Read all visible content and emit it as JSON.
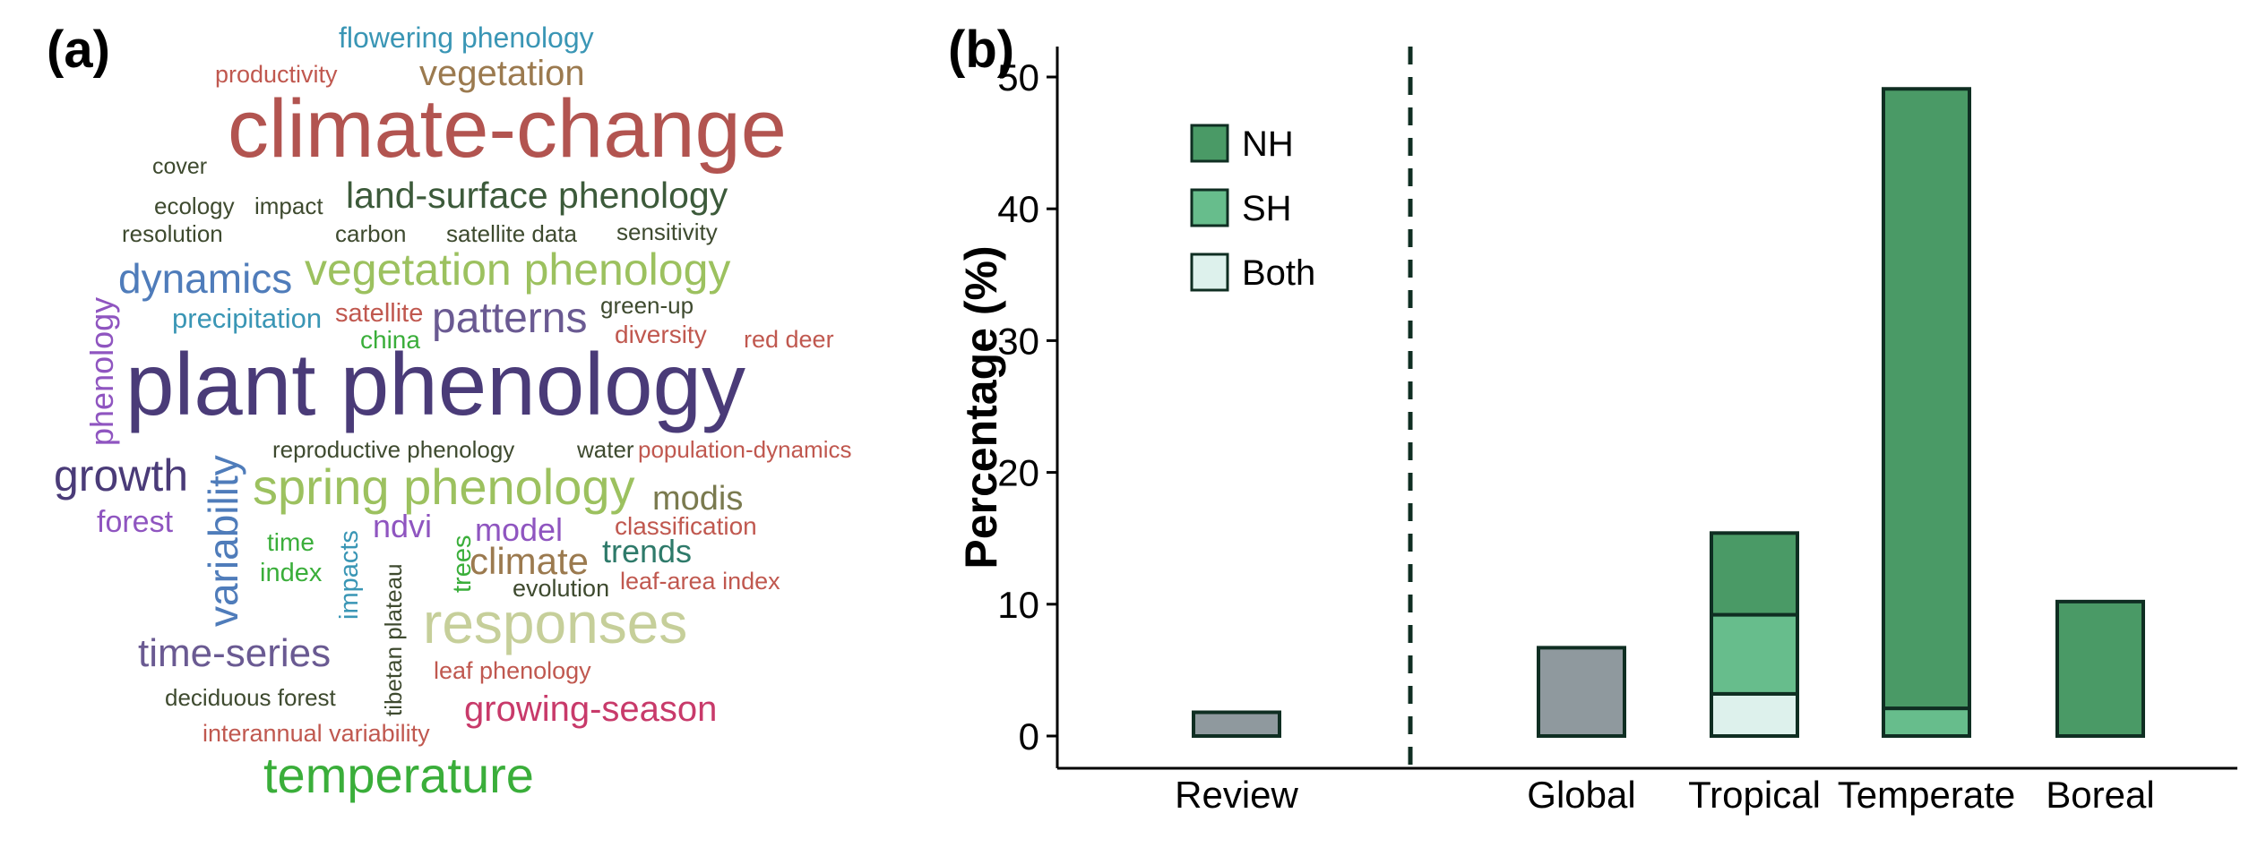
{
  "panels": {
    "a": "(a)",
    "b": "(b)"
  },
  "wordcloud": {
    "words": [
      {
        "text": "flowering phenology",
        "color": "#3a96b5"
      },
      {
        "text": "productivity",
        "color": "#c0584f"
      },
      {
        "text": "vegetation",
        "color": "#9b7a4f"
      },
      {
        "text": "climate-change",
        "color": "#b25450"
      },
      {
        "text": "cover",
        "color": "#3e4a2f"
      },
      {
        "text": "ecology",
        "color": "#3e4a2f"
      },
      {
        "text": "impact",
        "color": "#3e4a2f"
      },
      {
        "text": "land-surface phenology",
        "color": "#3c5a3a"
      },
      {
        "text": "resolution",
        "color": "#3e4a2f"
      },
      {
        "text": "carbon",
        "color": "#3e4a2f"
      },
      {
        "text": "satellite data",
        "color": "#3e4a2f"
      },
      {
        "text": "sensitivity",
        "color": "#3e4a2f"
      },
      {
        "text": "dynamics",
        "color": "#4f7cba"
      },
      {
        "text": "vegetation phenology",
        "color": "#9cc15f"
      },
      {
        "text": "phenology",
        "color": "#8f55c0"
      },
      {
        "text": "precipitation",
        "color": "#3a96b5"
      },
      {
        "text": "satellite",
        "color": "#c0584f"
      },
      {
        "text": "china",
        "color": "#3aae3a"
      },
      {
        "text": "patterns",
        "color": "#6a5a92"
      },
      {
        "text": "green-up",
        "color": "#3e4a2f"
      },
      {
        "text": "diversity",
        "color": "#c0584f"
      },
      {
        "text": "red deer",
        "color": "#c0584f"
      },
      {
        "text": "plant phenology",
        "color": "#4a3b78"
      },
      {
        "text": "reproductive phenology",
        "color": "#3e4a2f"
      },
      {
        "text": "water",
        "color": "#3e4a2f"
      },
      {
        "text": "population-dynamics",
        "color": "#c0584f"
      },
      {
        "text": "growth",
        "color": "#4a3b78"
      },
      {
        "text": "variability",
        "color": "#4f7cba"
      },
      {
        "text": "spring phenology",
        "color": "#9cc15f"
      },
      {
        "text": "modis",
        "color": "#7a7a4f"
      },
      {
        "text": "forest",
        "color": "#8f55c0"
      },
      {
        "text": "time",
        "color": "#3aae3a"
      },
      {
        "text": "impacts",
        "color": "#3a96b5"
      },
      {
        "text": "ndvi",
        "color": "#8f55c0"
      },
      {
        "text": "model",
        "color": "#8f55c0"
      },
      {
        "text": "classification",
        "color": "#c0584f"
      },
      {
        "text": "index",
        "color": "#3aae3a"
      },
      {
        "text": "trees",
        "color": "#3aae3a"
      },
      {
        "text": "climate",
        "color": "#9b7a4f"
      },
      {
        "text": "trends",
        "color": "#2e7a6a"
      },
      {
        "text": "tibetan plateau",
        "color": "#3e4a2f"
      },
      {
        "text": "evolution",
        "color": "#3e4a2f"
      },
      {
        "text": "leaf-area index",
        "color": "#c0584f"
      },
      {
        "text": "responses",
        "color": "#c6cf9a"
      },
      {
        "text": "time-series",
        "color": "#6a5a92"
      },
      {
        "text": "leaf phenology",
        "color": "#c0584f"
      },
      {
        "text": "deciduous forest",
        "color": "#3e4a2f"
      },
      {
        "text": "growing-season",
        "color": "#c83a6a"
      },
      {
        "text": "interannual variability",
        "color": "#c0584f"
      },
      {
        "text": "temperature",
        "color": "#3aae3a"
      }
    ]
  },
  "chart_data": {
    "type": "bar",
    "stacked": true,
    "ylabel": "Percentage (%)",
    "xlabel": "",
    "ylim": [
      0,
      51.5
    ],
    "yticks": [
      "0",
      "10",
      "20",
      "30",
      "40",
      "50"
    ],
    "categories": [
      "Review",
      "Global",
      "Tropical",
      "Temperate",
      "Boreal"
    ],
    "separator_after": "Review",
    "legend": {
      "position": "top-left",
      "entries": [
        "NH",
        "SH",
        "Both"
      ]
    },
    "series": [
      {
        "name": "Both",
        "color": "#ddf1ec",
        "values": [
          0,
          0,
          3.2,
          0,
          0
        ]
      },
      {
        "name": "SH",
        "color": "#67bd8c",
        "values": [
          0,
          0,
          6.0,
          2.1,
          0
        ]
      },
      {
        "name": "NH",
        "color": "#4a9a66",
        "values": [
          0,
          0,
          6.2,
          47.0,
          10.2
        ]
      },
      {
        "name": "",
        "color": "#8f999e",
        "values": [
          1.8,
          6.7,
          0,
          0,
          0
        ]
      }
    ]
  }
}
